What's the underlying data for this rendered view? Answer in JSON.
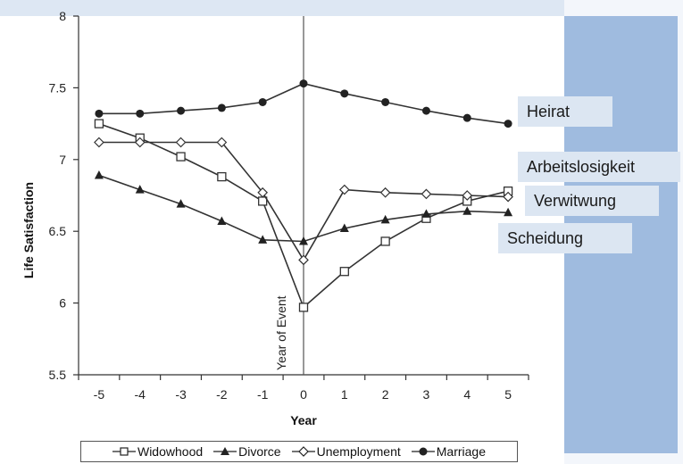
{
  "chart_data": {
    "type": "line",
    "title": "",
    "xlabel": "Year",
    "ylabel": "Life Satisfaction",
    "x": [
      -5,
      -4,
      -3,
      -2,
      -1,
      0,
      1,
      2,
      3,
      4,
      5
    ],
    "xlim": [
      -5.5,
      5.5
    ],
    "ylim": [
      5.5,
      8
    ],
    "yticks": [
      "5.5",
      "6",
      "6.5",
      "7",
      "7.5",
      "8"
    ],
    "grid": false,
    "event_marker": {
      "x": 0,
      "label": "Year of Event"
    },
    "legend_position": "bottom",
    "series": [
      {
        "name": "Widowhood",
        "marker": "open-square",
        "values": [
          7.25,
          7.15,
          7.02,
          6.88,
          6.71,
          5.97,
          6.22,
          6.43,
          6.59,
          6.71,
          6.78
        ]
      },
      {
        "name": "Divorce",
        "marker": "filled-triangle",
        "values": [
          6.89,
          6.79,
          6.69,
          6.57,
          6.44,
          6.43,
          6.52,
          6.58,
          6.62,
          6.64,
          6.63
        ]
      },
      {
        "name": "Unemployment",
        "marker": "open-diamond",
        "values": [
          7.12,
          7.12,
          7.12,
          7.12,
          6.77,
          6.3,
          6.79,
          6.77,
          6.76,
          6.75,
          6.74
        ]
      },
      {
        "name": "Marriage",
        "marker": "filled-circle",
        "values": [
          7.32,
          7.32,
          7.34,
          7.36,
          7.4,
          7.53,
          7.46,
          7.4,
          7.34,
          7.29,
          7.25
        ]
      }
    ]
  },
  "overlay_labels": {
    "heirat": "Heirat",
    "arbeitslosigkeit": "Arbeitslosigkeit",
    "verwitwung": "Verwitwung",
    "scheidung": "Scheidung"
  }
}
